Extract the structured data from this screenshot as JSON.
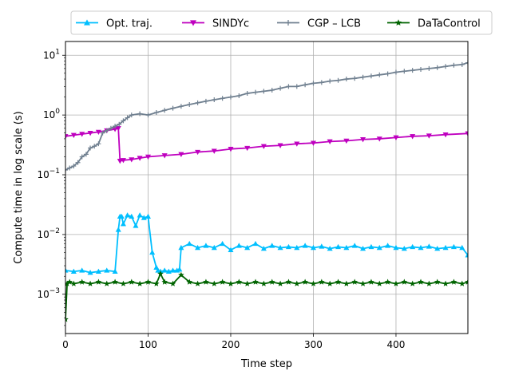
{
  "chart_data": {
    "type": "line",
    "xlabel": "Time step",
    "ylabel": "Compute time in log scale (s)",
    "xlim": [
      0,
      487
    ],
    "ylim": [
      0.00022,
      17
    ],
    "yscale": "log",
    "grid": true,
    "legend_placement": "top-center",
    "x_ticks": [
      {
        "value": 0,
        "label": "0"
      },
      {
        "value": 100,
        "label": "100"
      },
      {
        "value": 200,
        "label": "200"
      },
      {
        "value": 300,
        "label": "300"
      },
      {
        "value": 400,
        "label": "400"
      }
    ],
    "y_ticks": [
      {
        "value": 0.001,
        "label": "10",
        "exp": "−3"
      },
      {
        "value": 0.01,
        "label": "10",
        "exp": "−2"
      },
      {
        "value": 0.1,
        "label": "10",
        "exp": "−1"
      },
      {
        "value": 1,
        "label": "10",
        "exp": "0"
      },
      {
        "value": 10,
        "label": "10",
        "exp": "1"
      }
    ],
    "series": [
      {
        "name": "Opt. traj.",
        "color": "#00bfff",
        "marker": "triangle-up",
        "x": [
          0,
          10,
          20,
          30,
          40,
          50,
          60,
          64,
          66,
          68,
          70,
          75,
          80,
          85,
          90,
          95,
          100,
          105,
          110,
          112,
          115,
          120,
          125,
          130,
          135,
          138,
          140,
          150,
          160,
          170,
          180,
          190,
          200,
          210,
          220,
          230,
          240,
          250,
          260,
          270,
          280,
          290,
          300,
          310,
          320,
          330,
          340,
          350,
          360,
          370,
          380,
          390,
          400,
          410,
          420,
          430,
          440,
          450,
          460,
          470,
          480,
          487
        ],
        "y": [
          0.0025,
          0.0024,
          0.0025,
          0.0023,
          0.0024,
          0.0025,
          0.0024,
          0.012,
          0.02,
          0.02,
          0.015,
          0.021,
          0.02,
          0.014,
          0.021,
          0.019,
          0.02,
          0.005,
          0.0028,
          0.0025,
          0.0024,
          0.0025,
          0.0024,
          0.0025,
          0.0025,
          0.0026,
          0.006,
          0.007,
          0.006,
          0.0065,
          0.006,
          0.007,
          0.0055,
          0.0065,
          0.006,
          0.007,
          0.0058,
          0.0065,
          0.006,
          0.0062,
          0.006,
          0.0065,
          0.006,
          0.0063,
          0.0058,
          0.0062,
          0.006,
          0.0065,
          0.0058,
          0.0062,
          0.006,
          0.0065,
          0.006,
          0.0058,
          0.0062,
          0.006,
          0.0063,
          0.0058,
          0.006,
          0.0062,
          0.006,
          0.0045
        ]
      },
      {
        "name": "SINDYc",
        "color": "#bf00bf",
        "marker": "triangle-down",
        "x": [
          0,
          10,
          20,
          30,
          40,
          50,
          60,
          64,
          66,
          70,
          80,
          90,
          100,
          120,
          140,
          160,
          180,
          200,
          220,
          240,
          260,
          280,
          300,
          320,
          340,
          360,
          380,
          400,
          420,
          440,
          460,
          487
        ],
        "y": [
          0.44,
          0.46,
          0.48,
          0.5,
          0.52,
          0.55,
          0.58,
          0.6,
          0.17,
          0.175,
          0.18,
          0.19,
          0.2,
          0.21,
          0.22,
          0.24,
          0.25,
          0.27,
          0.28,
          0.3,
          0.31,
          0.33,
          0.34,
          0.36,
          0.37,
          0.39,
          0.4,
          0.42,
          0.44,
          0.45,
          0.47,
          0.49
        ]
      },
      {
        "name": "CGP – LCB",
        "color": "#708090",
        "marker": "plus",
        "x": [
          0,
          5,
          10,
          15,
          20,
          25,
          30,
          35,
          40,
          45,
          50,
          55,
          60,
          65,
          70,
          75,
          80,
          90,
          100,
          110,
          120,
          130,
          140,
          150,
          160,
          170,
          180,
          190,
          200,
          210,
          220,
          230,
          240,
          250,
          260,
          270,
          280,
          290,
          300,
          310,
          320,
          330,
          340,
          350,
          360,
          370,
          380,
          390,
          400,
          410,
          420,
          430,
          440,
          450,
          460,
          470,
          480,
          487
        ],
        "y": [
          0.12,
          0.13,
          0.14,
          0.16,
          0.2,
          0.22,
          0.28,
          0.3,
          0.33,
          0.5,
          0.55,
          0.6,
          0.65,
          0.7,
          0.8,
          0.9,
          1.0,
          1.05,
          1.0,
          1.1,
          1.2,
          1.3,
          1.4,
          1.5,
          1.6,
          1.7,
          1.8,
          1.9,
          2.0,
          2.1,
          2.3,
          2.4,
          2.5,
          2.6,
          2.8,
          3.0,
          3.0,
          3.2,
          3.4,
          3.5,
          3.7,
          3.8,
          4.0,
          4.1,
          4.3,
          4.5,
          4.7,
          4.9,
          5.2,
          5.4,
          5.6,
          5.8,
          6.0,
          6.2,
          6.5,
          6.8,
          7.0,
          7.5
        ]
      },
      {
        "name": "DaTaControl",
        "color": "#006400",
        "marker": "star",
        "x": [
          0,
          2,
          5,
          10,
          20,
          30,
          40,
          50,
          60,
          70,
          80,
          90,
          100,
          110,
          115,
          120,
          130,
          140,
          150,
          160,
          170,
          180,
          190,
          200,
          210,
          220,
          230,
          240,
          250,
          260,
          270,
          280,
          290,
          300,
          310,
          320,
          330,
          340,
          350,
          360,
          370,
          380,
          390,
          400,
          410,
          420,
          430,
          440,
          450,
          460,
          470,
          480,
          487
        ],
        "y": [
          0.00038,
          0.0015,
          0.0016,
          0.0015,
          0.0016,
          0.0015,
          0.0016,
          0.0015,
          0.0016,
          0.0015,
          0.0016,
          0.0015,
          0.0016,
          0.0015,
          0.0022,
          0.0016,
          0.0015,
          0.0021,
          0.0016,
          0.0015,
          0.0016,
          0.0015,
          0.0016,
          0.0015,
          0.0016,
          0.0015,
          0.0016,
          0.0015,
          0.0016,
          0.0015,
          0.0016,
          0.0015,
          0.0016,
          0.0015,
          0.0016,
          0.0015,
          0.0016,
          0.0015,
          0.0016,
          0.0015,
          0.0016,
          0.0015,
          0.0016,
          0.0015,
          0.0016,
          0.0015,
          0.0016,
          0.0015,
          0.0016,
          0.0015,
          0.0016,
          0.0015,
          0.0016
        ]
      }
    ]
  }
}
